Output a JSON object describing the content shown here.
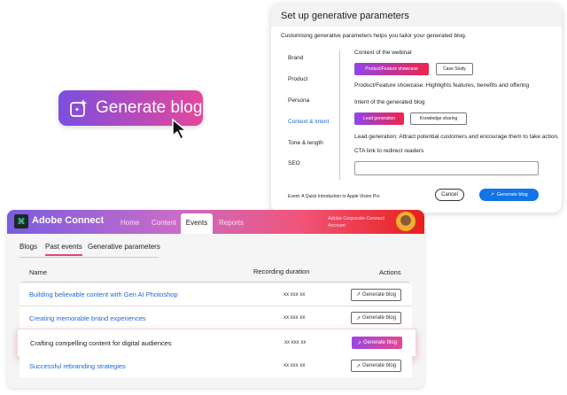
{
  "hero_button": {
    "label": "Generate blog",
    "gradient": [
      "#7b4fe0",
      "#e6479a"
    ]
  },
  "dialog": {
    "title": "Set up generative parameters",
    "subtitle": "Customising generative parameters helps you tailor your generated blog.",
    "nav": [
      "Brand",
      "Product",
      "Persona",
      "Context & intent",
      "Tone & length",
      "SEO"
    ],
    "active_nav": "Context & intent",
    "context_label": "Context of the webinar",
    "context_options": [
      "Product/Feature showcase",
      "Case Study"
    ],
    "context_desc": "Product/Feature showcase: Highlights features, benefits and offering",
    "intent_label": "Intent of the generated blog",
    "intent_options": [
      "Lead generation",
      "Knowledge sharing"
    ],
    "intent_desc": "Lead generation: Attract potential customers and encourage them to take action.",
    "cta_label": "CTA link to redirect readers",
    "cta_value": "",
    "event": "Event: A Quick Introduction to Apple Vision Pro",
    "cancel": "Cancel",
    "generate": "Generate blog"
  },
  "app": {
    "name": "Adobe Connect",
    "nav": [
      "Home",
      "Content",
      "Events",
      "Reports"
    ],
    "active_nav": "Events",
    "account": [
      "Adobe Corporate Connect",
      "Account"
    ],
    "subtabs": [
      "Blogs",
      "Past events",
      "Generative parameters"
    ],
    "active_subtab": "Past events",
    "columns": [
      "Name",
      "Recording duration",
      "Actions"
    ],
    "rows": [
      {
        "name": "Building believable content with Gen AI Photoshop",
        "duration": "xx xxx xx",
        "action": "Generate blog"
      },
      {
        "name": "Creating memorable brand experiences",
        "duration": "xx xxx xx",
        "action": "Generate blog"
      },
      {
        "name": "Crafting compelling content for digital audiences",
        "duration": "xx xxx xx",
        "action": "Generate blog"
      },
      {
        "name": "Successful rebranding strategies",
        "duration": "xx xxx xx",
        "action": "Generate blog"
      }
    ]
  },
  "colors": {
    "link": "#1a6ad6",
    "primary": "#1473e6",
    "tab_underline": "#e0457b"
  }
}
